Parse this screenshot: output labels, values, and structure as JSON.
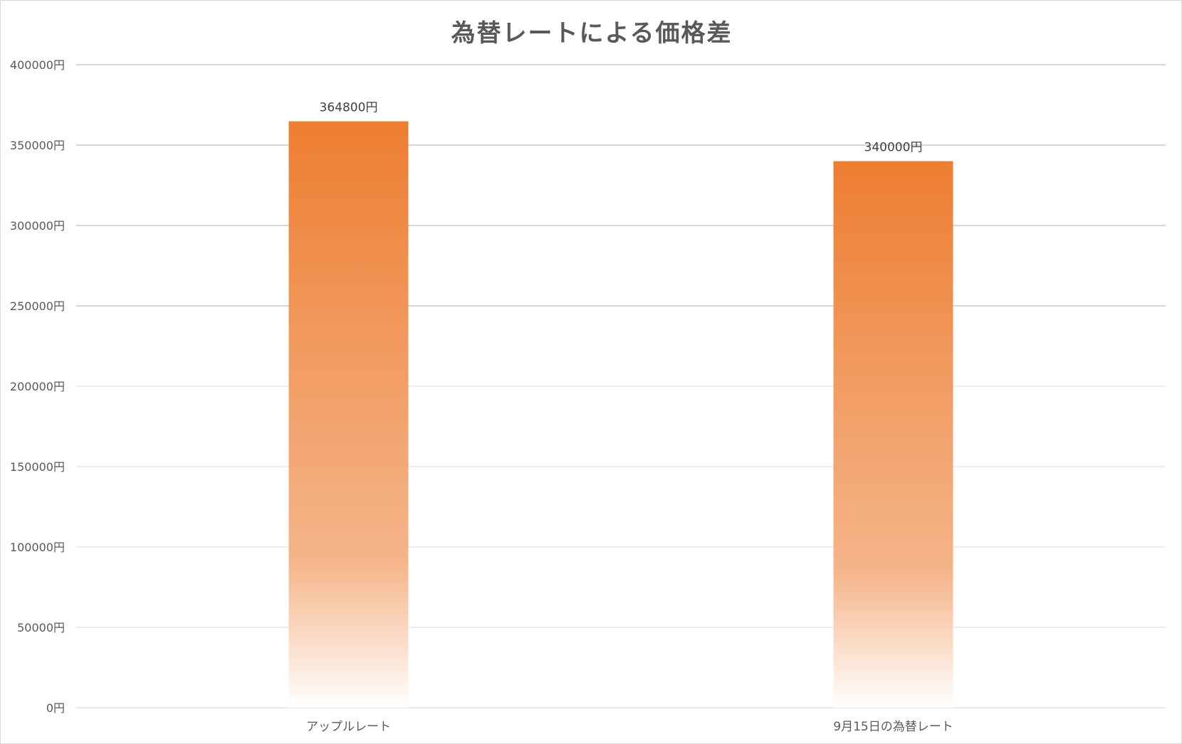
{
  "chart_data": {
    "type": "bar",
    "title": "為替レートによる価格差",
    "xlabel": "",
    "ylabel": "",
    "categories": [
      "アップルレート",
      "9月15日の為替レート"
    ],
    "values": [
      364800,
      340000
    ],
    "data_labels": [
      "364800円",
      "340000円"
    ],
    "ylim": [
      0,
      400000
    ],
    "y_ticks": [
      0,
      50000,
      100000,
      150000,
      200000,
      250000,
      300000,
      350000,
      400000
    ],
    "y_tick_labels": [
      "0円",
      "50000円",
      "100000円",
      "150000円",
      "200000円",
      "250000円",
      "300000円",
      "350000円",
      "400000円"
    ],
    "grid": true,
    "legend": "none",
    "colors": {
      "bar_top": "#ED7D31",
      "bar_bottom": "#FFFFFF",
      "grid": "#d9d9d9",
      "text": "#595959"
    }
  }
}
